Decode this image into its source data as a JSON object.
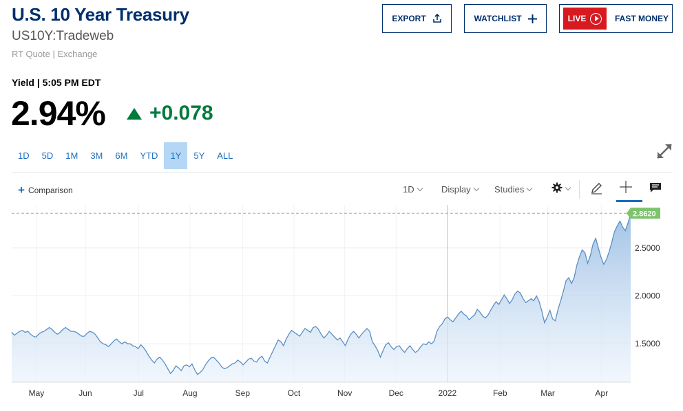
{
  "header": {
    "title": "U.S. 10 Year Treasury",
    "symbol": "US10Y:Tradeweb",
    "quote_source": "RT Quote | Exchange"
  },
  "buttons": {
    "export": "EXPORT",
    "watchlist": "WATCHLIST",
    "live": "LIVE",
    "fast_money": "FAST MONEY"
  },
  "quote": {
    "label": "Yield | 5:05 PM EDT",
    "price": "2.94%",
    "change": "+0.078",
    "direction": "up"
  },
  "ranges": [
    "1D",
    "5D",
    "1M",
    "3M",
    "6M",
    "YTD",
    "1Y",
    "5Y",
    "ALL"
  ],
  "active_range": "1Y",
  "toolbar": {
    "comparison": "Comparison",
    "interval": "1D",
    "display": "Display",
    "studies": "Studies"
  },
  "icons": [
    "upload-icon",
    "plus-icon",
    "play-icon",
    "expand-icon",
    "gear-icon",
    "pencil-icon",
    "crosshair-icon",
    "comment-icon"
  ],
  "colors": {
    "brand": "#002f6c",
    "live": "#d71920",
    "up": "#007a3d",
    "line": "#5b8fc4",
    "last_badge": "#7cc36b",
    "active_range": "#b3d7f5"
  },
  "chart_data": {
    "type": "area",
    "last_value_label": "2.8620",
    "last_value": 2.862,
    "x_tick_labels": [
      "May",
      "Jun",
      "Jul",
      "Aug",
      "Sep",
      "Oct",
      "Nov",
      "Dec",
      "2022",
      "Feb",
      "Mar",
      "Apr"
    ],
    "y_tick_labels": [
      "1.5000",
      "2.0000",
      "2.5000"
    ],
    "y_ticks": [
      1.5,
      2.0,
      2.5
    ],
    "ylim": [
      1.1,
      2.95
    ],
    "grid": true,
    "series": [
      {
        "values": [
          1.62,
          1.59,
          1.61,
          1.63,
          1.64,
          1.62,
          1.63,
          1.6,
          1.58,
          1.57,
          1.6,
          1.62,
          1.63,
          1.65,
          1.67,
          1.65,
          1.62,
          1.6,
          1.62,
          1.65,
          1.67,
          1.65,
          1.63,
          1.63,
          1.62,
          1.6,
          1.58,
          1.58,
          1.61,
          1.63,
          1.62,
          1.6,
          1.56,
          1.52,
          1.5,
          1.49,
          1.47,
          1.5,
          1.53,
          1.55,
          1.52,
          1.5,
          1.52,
          1.5,
          1.5,
          1.48,
          1.47,
          1.45,
          1.49,
          1.46,
          1.42,
          1.37,
          1.33,
          1.3,
          1.34,
          1.36,
          1.33,
          1.29,
          1.24,
          1.19,
          1.22,
          1.27,
          1.25,
          1.22,
          1.27,
          1.28,
          1.26,
          1.29,
          1.23,
          1.18,
          1.2,
          1.23,
          1.28,
          1.32,
          1.35,
          1.36,
          1.33,
          1.3,
          1.26,
          1.24,
          1.25,
          1.27,
          1.29,
          1.3,
          1.33,
          1.31,
          1.28,
          1.31,
          1.34,
          1.35,
          1.32,
          1.31,
          1.35,
          1.37,
          1.32,
          1.3,
          1.36,
          1.42,
          1.48,
          1.54,
          1.52,
          1.48,
          1.55,
          1.6,
          1.64,
          1.62,
          1.6,
          1.58,
          1.62,
          1.66,
          1.64,
          1.62,
          1.67,
          1.68,
          1.65,
          1.6,
          1.56,
          1.59,
          1.63,
          1.6,
          1.57,
          1.54,
          1.56,
          1.52,
          1.48,
          1.55,
          1.6,
          1.63,
          1.6,
          1.56,
          1.6,
          1.63,
          1.66,
          1.63,
          1.52,
          1.48,
          1.43,
          1.36,
          1.43,
          1.49,
          1.51,
          1.47,
          1.44,
          1.47,
          1.48,
          1.44,
          1.41,
          1.45,
          1.48,
          1.44,
          1.41,
          1.43,
          1.47,
          1.5,
          1.49,
          1.52,
          1.5,
          1.53,
          1.63,
          1.68,
          1.71,
          1.76,
          1.78,
          1.75,
          1.73,
          1.77,
          1.81,
          1.84,
          1.81,
          1.79,
          1.75,
          1.78,
          1.8,
          1.86,
          1.83,
          1.79,
          1.77,
          1.8,
          1.85,
          1.9,
          1.94,
          1.91,
          1.96,
          2.01,
          1.97,
          1.92,
          1.96,
          2.02,
          2.05,
          2.03,
          1.97,
          1.93,
          1.95,
          1.97,
          1.95,
          2.0,
          1.94,
          1.84,
          1.72,
          1.78,
          1.85,
          1.76,
          1.74,
          1.86,
          1.95,
          2.05,
          2.16,
          2.19,
          2.13,
          2.19,
          2.32,
          2.41,
          2.48,
          2.45,
          2.34,
          2.42,
          2.54,
          2.6,
          2.5,
          2.4,
          2.33,
          2.38,
          2.46,
          2.56,
          2.67,
          2.73,
          2.78,
          2.72,
          2.68,
          2.76,
          2.86
        ]
      }
    ]
  }
}
